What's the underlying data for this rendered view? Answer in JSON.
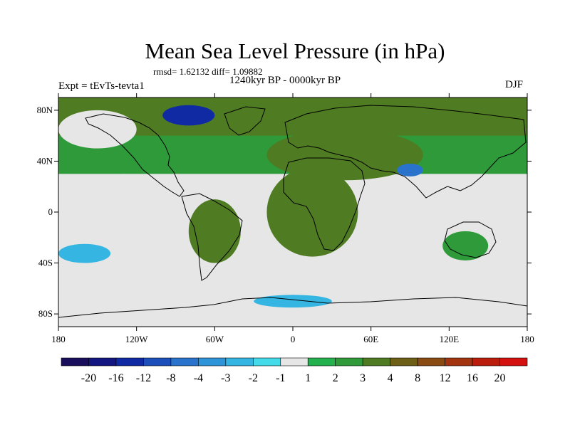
{
  "header": {
    "title": "Mean Sea Level Pressure (in hPa)",
    "stats": "rmsd= 1.62132 diff= 1.09882",
    "left_label": "Expt = tEvTs-tevta1",
    "center_label": "1240kyr BP - 0000kyr BP",
    "right_label": "DJF"
  },
  "chart_data": {
    "type": "heatmap",
    "title": "Mean Sea Level Pressure (in hPa)",
    "subtitle": "1240kyr BP - 0000kyr BP",
    "season": "DJF",
    "experiment": "Expt = tEvTs-tevta1",
    "statistics": {
      "rmsd": 1.62132,
      "diff": 1.09882
    },
    "xlim": [
      -180,
      180
    ],
    "ylim": [
      -90,
      90
    ],
    "x_ticks": [
      {
        "value": -180,
        "label": "180"
      },
      {
        "value": -120,
        "label": "120W"
      },
      {
        "value": -60,
        "label": "60W"
      },
      {
        "value": 0,
        "label": "0"
      },
      {
        "value": 60,
        "label": "60E"
      },
      {
        "value": 120,
        "label": "120E"
      },
      {
        "value": 180,
        "label": "180"
      }
    ],
    "y_ticks": [
      {
        "value": 80,
        "label": "80N"
      },
      {
        "value": 40,
        "label": "40N"
      },
      {
        "value": 0,
        "label": "0"
      },
      {
        "value": -40,
        "label": "40S"
      },
      {
        "value": -80,
        "label": "80S"
      }
    ],
    "colorbar": {
      "labels": [
        "-20",
        "-16",
        "-12",
        "-8",
        "-4",
        "-3",
        "-2",
        "-1",
        "1",
        "2",
        "3",
        "4",
        "8",
        "12",
        "16",
        "20"
      ],
      "colors": [
        "#190e5c",
        "#131580",
        "#0f2aa3",
        "#1d4fba",
        "#2a73cd",
        "#2f95d9",
        "#35b6e2",
        "#43dbe9",
        "#e6e6e6",
        "#22b14c",
        "#2e9a3a",
        "#4f7c22",
        "#6e5f16",
        "#8a4b12",
        "#a2340f",
        "#bb1d0c",
        "#d4110f"
      ]
    },
    "regions": [
      {
        "name": "zonal-band-north-pacific-pos",
        "x": [
          -180,
          180
        ],
        "y": [
          30,
          80
        ],
        "value": 2
      },
      {
        "name": "arctic-band-pos",
        "x": [
          -180,
          180
        ],
        "y": [
          60,
          90
        ],
        "value": 3
      },
      {
        "name": "eurasia-central-pos",
        "x": [
          -20,
          100
        ],
        "y": [
          25,
          65
        ],
        "value": 3.5
      },
      {
        "name": "north-atlantic-gray",
        "x": [
          -180,
          -120
        ],
        "y": [
          50,
          80
        ],
        "value": 0
      },
      {
        "name": "east-pacific-gray",
        "x": [
          -180,
          -80
        ],
        "y": [
          -30,
          30
        ],
        "value": 0
      },
      {
        "name": "south-pacific-neg",
        "x": [
          -180,
          -140
        ],
        "y": [
          -40,
          -25
        ],
        "value": -2.5
      },
      {
        "name": "southern-ocean-gray",
        "x": [
          -180,
          180
        ],
        "y": [
          -80,
          -40
        ],
        "value": 0
      },
      {
        "name": "indian-ocean-gray",
        "x": [
          40,
          180
        ],
        "y": [
          -40,
          20
        ],
        "value": 0
      },
      {
        "name": "tibet-neg-min",
        "x": [
          80,
          100
        ],
        "y": [
          28,
          38
        ],
        "value": -6
      },
      {
        "name": "greenland-neg-min",
        "x": [
          -100,
          -60
        ],
        "y": [
          68,
          84
        ],
        "value": -14
      },
      {
        "name": "south-america-pos",
        "x": [
          -80,
          -40
        ],
        "y": [
          -40,
          10
        ],
        "value": 3.5
      },
      {
        "name": "africa-pos",
        "x": [
          -20,
          50
        ],
        "y": [
          -35,
          35
        ],
        "value": 3.5
      },
      {
        "name": "australia-pos",
        "x": [
          115,
          150
        ],
        "y": [
          -38,
          -15
        ],
        "value": 2
      },
      {
        "name": "antarctic-coast-neg",
        "x": [
          -30,
          30
        ],
        "y": [
          -75,
          -65
        ],
        "value": -2.5
      }
    ]
  }
}
